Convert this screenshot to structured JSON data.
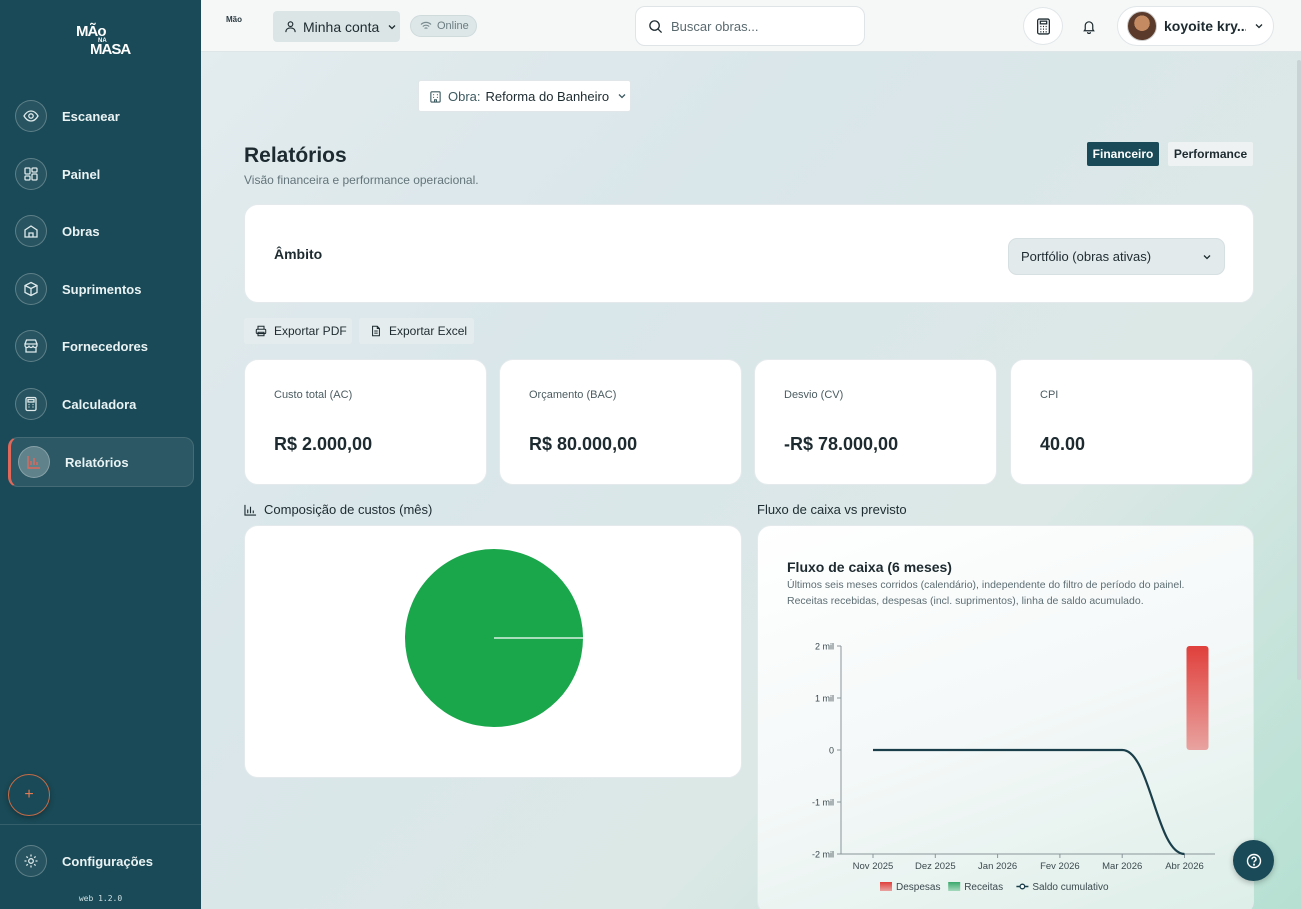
{
  "app": {
    "logo": {
      "line1": "MÃo",
      "line2": "NA",
      "line3": "MASA"
    },
    "mini_logo": "Mão"
  },
  "sidebar": {
    "items": [
      {
        "label": "Escanear",
        "icon": "eye-icon"
      },
      {
        "label": "Painel",
        "icon": "grid-icon"
      },
      {
        "label": "Obras",
        "icon": "house-icon"
      },
      {
        "label": "Suprimentos",
        "icon": "box-icon"
      },
      {
        "label": "Fornecedores",
        "icon": "store-icon"
      },
      {
        "label": "Calculadora",
        "icon": "calculator-icon"
      },
      {
        "label": "Relatórios",
        "icon": "bar-chart-icon",
        "active": true
      }
    ],
    "fab": "+",
    "settings_label": "Configurações",
    "version": "web 1.2.0"
  },
  "topbar": {
    "account_label": "Minha conta",
    "status": "Online",
    "search_placeholder": "Buscar obras...",
    "user_name": "koyoite kry..."
  },
  "obra": {
    "key": "Obra:",
    "value": "Reforma do Banheiro"
  },
  "page": {
    "title": "Relatórios",
    "subtitle": "Visão financeira e performance operacional."
  },
  "tabs": {
    "financeiro": "Financeiro",
    "performance": "Performance"
  },
  "scope": {
    "label": "Âmbito",
    "selected": "Portfólio (obras ativas)"
  },
  "export": {
    "pdf": "Exportar PDF",
    "excel": "Exportar Excel"
  },
  "kpis": [
    {
      "label": "Custo total (AC)",
      "value": "R$ 2.000,00"
    },
    {
      "label": "Orçamento (BAC)",
      "value": "R$ 80.000,00"
    },
    {
      "label": "Desvio (CV)",
      "value": "-R$ 78.000,00"
    },
    {
      "label": "CPI",
      "value": "40.00"
    }
  ],
  "sections": {
    "composition_title": "Composição de custos (mês)",
    "cashflow_title": "Fluxo de caixa vs previsto"
  },
  "cashflow_card": {
    "title": "Fluxo de caixa (6 meses)",
    "desc1": "Últimos seis meses corridos (calendário), independente do filtro de período do painel.",
    "desc2": "Receitas recebidas, despesas (incl. suprimentos), linha de saldo acumulado."
  },
  "colors": {
    "sidebar": "#1a4a57",
    "accent": "#e0685a",
    "pie_green": "#1aa64b",
    "despesas": "#e0403c",
    "receitas": "#3aa86b",
    "saldo": "#1a3f4a"
  },
  "chart_data": [
    {
      "type": "pie",
      "title": "Composição de custos (mês)",
      "slices": [
        {
          "value": 100
        }
      ]
    },
    {
      "type": "bar",
      "title": "Fluxo de caixa (6 meses)",
      "categories": [
        "Nov 2025",
        "Dez 2025",
        "Jan 2026",
        "Fev 2026",
        "Mar 2026",
        "Abr 2026"
      ],
      "y_ticks": [
        "2 mil",
        "1 mil",
        "0",
        "-1 mil",
        "-2 mil"
      ],
      "ylim": [
        -2000,
        2000
      ],
      "series": [
        {
          "name": "Despesas",
          "type": "bar",
          "values": [
            0,
            0,
            0,
            0,
            0,
            2000
          ]
        },
        {
          "name": "Receitas",
          "type": "bar",
          "values": [
            0,
            0,
            0,
            0,
            0,
            0
          ]
        },
        {
          "name": "Saldo cumulativo",
          "type": "line",
          "values": [
            0,
            0,
            0,
            0,
            0,
            -2000
          ]
        }
      ],
      "legend": [
        "Despesas",
        "Receitas",
        "Saldo cumulativo"
      ],
      "legend_position": "bottom"
    }
  ]
}
